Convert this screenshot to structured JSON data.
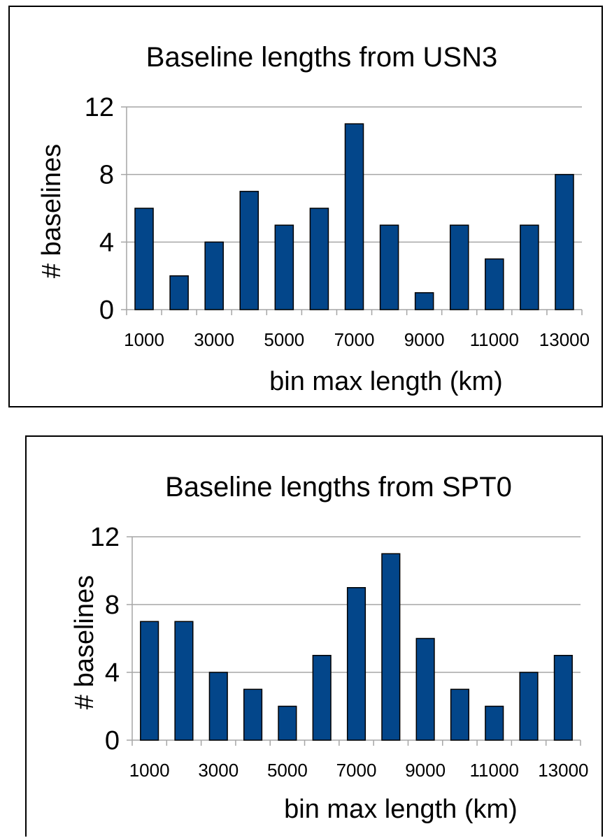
{
  "chart_data": [
    {
      "type": "bar",
      "title": "Baseline lengths from USN3",
      "xlabel": "bin max length (km)",
      "ylabel": "# baselines",
      "ylim": [
        0,
        12
      ],
      "yticks": [
        "0",
        "4",
        "8",
        "12"
      ],
      "categories": [
        "1000",
        "2000",
        "3000",
        "4000",
        "5000",
        "6000",
        "7000",
        "8000",
        "9000",
        "10000",
        "11000",
        "12000",
        "13000"
      ],
      "xtick_labels": [
        "1000",
        "3000",
        "5000",
        "7000",
        "9000",
        "11000",
        "13000"
      ],
      "values": [
        6,
        2,
        4,
        7,
        5,
        6,
        11,
        5,
        1,
        5,
        3,
        5,
        8
      ],
      "color": "#03468a",
      "grid": true
    },
    {
      "type": "bar",
      "title": "Baseline lengths from SPT0",
      "xlabel": "bin max length (km)",
      "ylabel": "# baselines",
      "ylim": [
        0,
        12
      ],
      "yticks": [
        "0",
        "4",
        "8",
        "12"
      ],
      "categories": [
        "1000",
        "2000",
        "3000",
        "4000",
        "5000",
        "6000",
        "7000",
        "8000",
        "9000",
        "10000",
        "11000",
        "12000",
        "13000"
      ],
      "xtick_labels": [
        "1000",
        "3000",
        "5000",
        "7000",
        "9000",
        "11000",
        "13000"
      ],
      "values": [
        7,
        7,
        4,
        3,
        2,
        5,
        9,
        11,
        6,
        3,
        2,
        4,
        5
      ],
      "color": "#03468a",
      "grid": true
    }
  ]
}
